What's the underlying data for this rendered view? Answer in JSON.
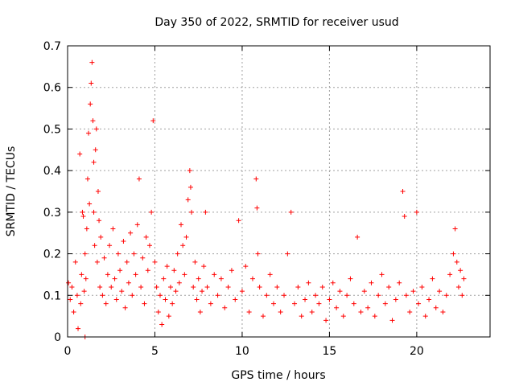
{
  "chart_data": {
    "type": "scatter",
    "title": "Day 350 of 2022, SRMTID for receiver usud",
    "xlabel": "GPS time / hours",
    "ylabel": "SRMTID / TECUs",
    "xlim": [
      0,
      24.2
    ],
    "ylim": [
      0,
      0.7
    ],
    "xticks": [
      0,
      5,
      10,
      15,
      20
    ],
    "xtick_labels": [
      "0",
      "5",
      "10",
      "15",
      "20"
    ],
    "yticks": [
      0,
      0.1,
      0.2,
      0.3,
      0.4,
      0.5,
      0.6,
      0.7
    ],
    "ytick_labels": [
      "0",
      "0.1",
      "0.2",
      "0.3",
      "0.4",
      "0.5",
      "0.6",
      "0.7"
    ],
    "grid": true,
    "marker": "+",
    "color": "#ff0000",
    "series": [
      {
        "name": "SRMTID",
        "points": [
          [
            0.05,
            0.13
          ],
          [
            0.15,
            0.09
          ],
          [
            0.25,
            0.12
          ],
          [
            0.35,
            0.06
          ],
          [
            0.45,
            0.18
          ],
          [
            0.55,
            0.1
          ],
          [
            0.6,
            0.02
          ],
          [
            0.7,
            0.44
          ],
          [
            0.75,
            0.08
          ],
          [
            0.8,
            0.15
          ],
          [
            0.85,
            0.3
          ],
          [
            0.9,
            0.29
          ],
          [
            0.95,
            0.11
          ],
          [
            1.0,
            0.2
          ],
          [
            1.0,
            0.0
          ],
          [
            1.05,
            0.14
          ],
          [
            1.1,
            0.26
          ],
          [
            1.15,
            0.38
          ],
          [
            1.2,
            0.49
          ],
          [
            1.25,
            0.32
          ],
          [
            1.3,
            0.56
          ],
          [
            1.35,
            0.61
          ],
          [
            1.4,
            0.66
          ],
          [
            1.45,
            0.52
          ],
          [
            1.5,
            0.42
          ],
          [
            1.5,
            0.3
          ],
          [
            1.55,
            0.22
          ],
          [
            1.6,
            0.45
          ],
          [
            1.65,
            0.5
          ],
          [
            1.7,
            0.18
          ],
          [
            1.75,
            0.35
          ],
          [
            1.8,
            0.28
          ],
          [
            1.85,
            0.12
          ],
          [
            1.9,
            0.24
          ],
          [
            2.0,
            0.1
          ],
          [
            2.1,
            0.19
          ],
          [
            2.2,
            0.08
          ],
          [
            2.3,
            0.15
          ],
          [
            2.4,
            0.22
          ],
          [
            2.5,
            0.12
          ],
          [
            2.6,
            0.26
          ],
          [
            2.7,
            0.14
          ],
          [
            2.8,
            0.09
          ],
          [
            2.9,
            0.2
          ],
          [
            3.0,
            0.16
          ],
          [
            3.1,
            0.11
          ],
          [
            3.2,
            0.23
          ],
          [
            3.3,
            0.07
          ],
          [
            3.4,
            0.18
          ],
          [
            3.5,
            0.13
          ],
          [
            3.6,
            0.25
          ],
          [
            3.7,
            0.1
          ],
          [
            3.8,
            0.2
          ],
          [
            3.9,
            0.15
          ],
          [
            4.0,
            0.27
          ],
          [
            4.1,
            0.38
          ],
          [
            4.2,
            0.12
          ],
          [
            4.3,
            0.19
          ],
          [
            4.4,
            0.08
          ],
          [
            4.5,
            0.24
          ],
          [
            4.6,
            0.16
          ],
          [
            4.7,
            0.22
          ],
          [
            4.8,
            0.3
          ],
          [
            4.9,
            0.52
          ],
          [
            5.0,
            0.18
          ],
          [
            5.1,
            0.12
          ],
          [
            5.2,
            0.06
          ],
          [
            5.3,
            0.1
          ],
          [
            5.4,
            0.03
          ],
          [
            5.5,
            0.14
          ],
          [
            5.6,
            0.09
          ],
          [
            5.7,
            0.17
          ],
          [
            5.8,
            0.05
          ],
          [
            5.9,
            0.12
          ],
          [
            6.0,
            0.08
          ],
          [
            6.1,
            0.16
          ],
          [
            6.2,
            0.11
          ],
          [
            6.3,
            0.2
          ],
          [
            6.4,
            0.13
          ],
          [
            6.5,
            0.27
          ],
          [
            6.6,
            0.22
          ],
          [
            6.7,
            0.15
          ],
          [
            6.8,
            0.24
          ],
          [
            6.9,
            0.33
          ],
          [
            7.0,
            0.4
          ],
          [
            7.05,
            0.36
          ],
          [
            7.1,
            0.3
          ],
          [
            7.2,
            0.12
          ],
          [
            7.3,
            0.18
          ],
          [
            7.4,
            0.09
          ],
          [
            7.5,
            0.14
          ],
          [
            7.6,
            0.06
          ],
          [
            7.7,
            0.11
          ],
          [
            7.8,
            0.17
          ],
          [
            7.9,
            0.3
          ],
          [
            8.0,
            0.12
          ],
          [
            8.2,
            0.08
          ],
          [
            8.4,
            0.15
          ],
          [
            8.6,
            0.1
          ],
          [
            8.8,
            0.14
          ],
          [
            9.0,
            0.07
          ],
          [
            9.2,
            0.12
          ],
          [
            9.4,
            0.16
          ],
          [
            9.6,
            0.09
          ],
          [
            9.8,
            0.28
          ],
          [
            10.0,
            0.11
          ],
          [
            10.2,
            0.17
          ],
          [
            10.4,
            0.06
          ],
          [
            10.6,
            0.14
          ],
          [
            10.8,
            0.38
          ],
          [
            10.85,
            0.31
          ],
          [
            10.9,
            0.2
          ],
          [
            11.0,
            0.12
          ],
          [
            11.2,
            0.05
          ],
          [
            11.4,
            0.1
          ],
          [
            11.6,
            0.15
          ],
          [
            11.8,
            0.08
          ],
          [
            12.0,
            0.12
          ],
          [
            12.2,
            0.06
          ],
          [
            12.4,
            0.1
          ],
          [
            12.6,
            0.2
          ],
          [
            12.8,
            0.3
          ],
          [
            13.0,
            0.08
          ],
          [
            13.2,
            0.12
          ],
          [
            13.4,
            0.05
          ],
          [
            13.6,
            0.09
          ],
          [
            13.8,
            0.13
          ],
          [
            14.0,
            0.06
          ],
          [
            14.2,
            0.1
          ],
          [
            14.4,
            0.08
          ],
          [
            14.6,
            0.12
          ],
          [
            14.8,
            0.04
          ],
          [
            15.0,
            0.09
          ],
          [
            15.2,
            0.13
          ],
          [
            15.4,
            0.07
          ],
          [
            15.6,
            0.11
          ],
          [
            15.8,
            0.05
          ],
          [
            16.0,
            0.1
          ],
          [
            16.2,
            0.14
          ],
          [
            16.4,
            0.08
          ],
          [
            16.6,
            0.24
          ],
          [
            16.8,
            0.06
          ],
          [
            17.0,
            0.11
          ],
          [
            17.2,
            0.07
          ],
          [
            17.4,
            0.13
          ],
          [
            17.6,
            0.05
          ],
          [
            17.8,
            0.1
          ],
          [
            18.0,
            0.15
          ],
          [
            18.2,
            0.08
          ],
          [
            18.4,
            0.12
          ],
          [
            18.6,
            0.04
          ],
          [
            18.8,
            0.09
          ],
          [
            19.0,
            0.13
          ],
          [
            19.2,
            0.35
          ],
          [
            19.3,
            0.29
          ],
          [
            19.4,
            0.1
          ],
          [
            19.6,
            0.06
          ],
          [
            19.8,
            0.11
          ],
          [
            20.0,
            0.3
          ],
          [
            20.1,
            0.08
          ],
          [
            20.3,
            0.12
          ],
          [
            20.5,
            0.05
          ],
          [
            20.7,
            0.09
          ],
          [
            20.9,
            0.14
          ],
          [
            21.1,
            0.07
          ],
          [
            21.3,
            0.11
          ],
          [
            21.5,
            0.06
          ],
          [
            21.7,
            0.1
          ],
          [
            21.9,
            0.15
          ],
          [
            22.1,
            0.2
          ],
          [
            22.2,
            0.26
          ],
          [
            22.3,
            0.18
          ],
          [
            22.4,
            0.12
          ],
          [
            22.5,
            0.16
          ],
          [
            22.6,
            0.1
          ],
          [
            22.7,
            0.14
          ]
        ]
      }
    ]
  }
}
